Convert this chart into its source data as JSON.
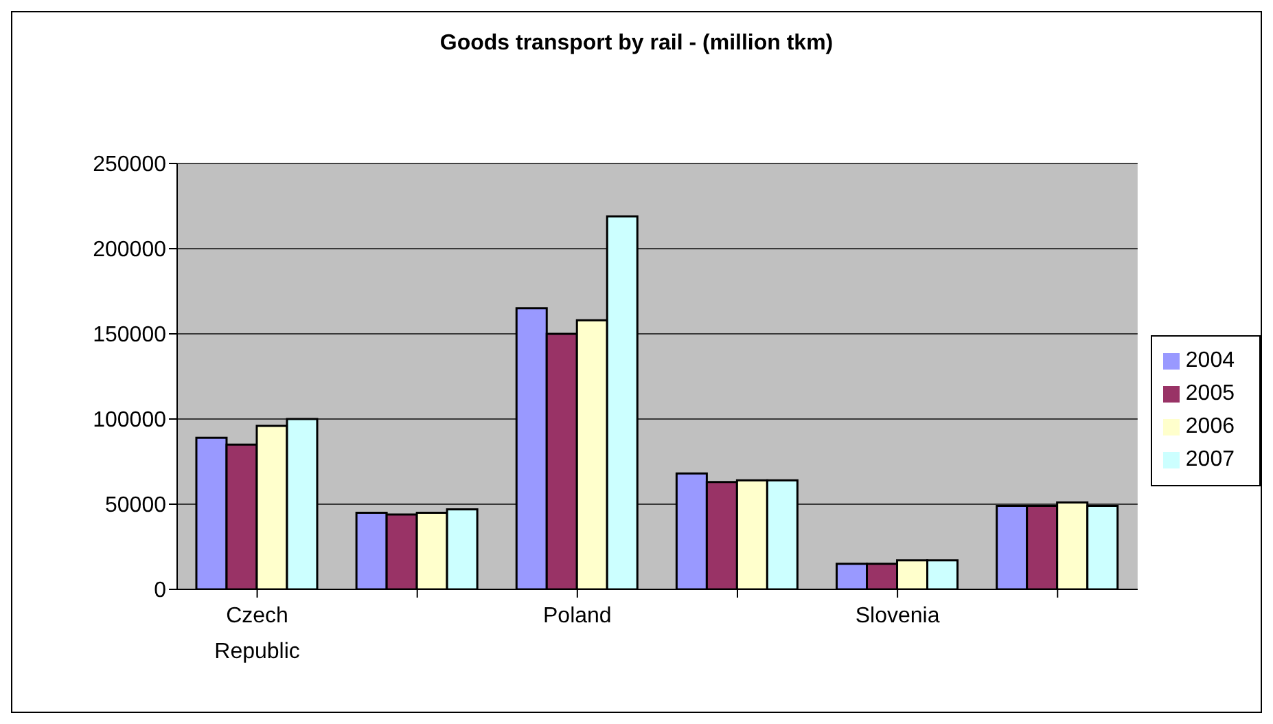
{
  "chart_data": {
    "type": "bar",
    "title": "Goods transport by rail - (million tkm)",
    "categories": [
      "Czech Republic",
      null,
      "Poland",
      null,
      "Slovenia",
      null
    ],
    "series": [
      {
        "name": "2004",
        "color": "#9999ff",
        "values": [
          89000,
          45000,
          165000,
          68000,
          15000,
          49000
        ]
      },
      {
        "name": "2005",
        "color": "#993366",
        "values": [
          85000,
          44000,
          150000,
          63000,
          15000,
          49000
        ]
      },
      {
        "name": "2006",
        "color": "#ffffcc",
        "values": [
          96000,
          45000,
          158000,
          64000,
          17000,
          51000
        ]
      },
      {
        "name": "2007",
        "color": "#ccffff",
        "values": [
          100000,
          47000,
          219000,
          64000,
          17000,
          49000
        ]
      }
    ],
    "ylim": [
      0,
      250000
    ],
    "yticks": [
      0,
      50000,
      100000,
      150000,
      200000,
      250000
    ],
    "grid": "y",
    "legend": "right"
  }
}
